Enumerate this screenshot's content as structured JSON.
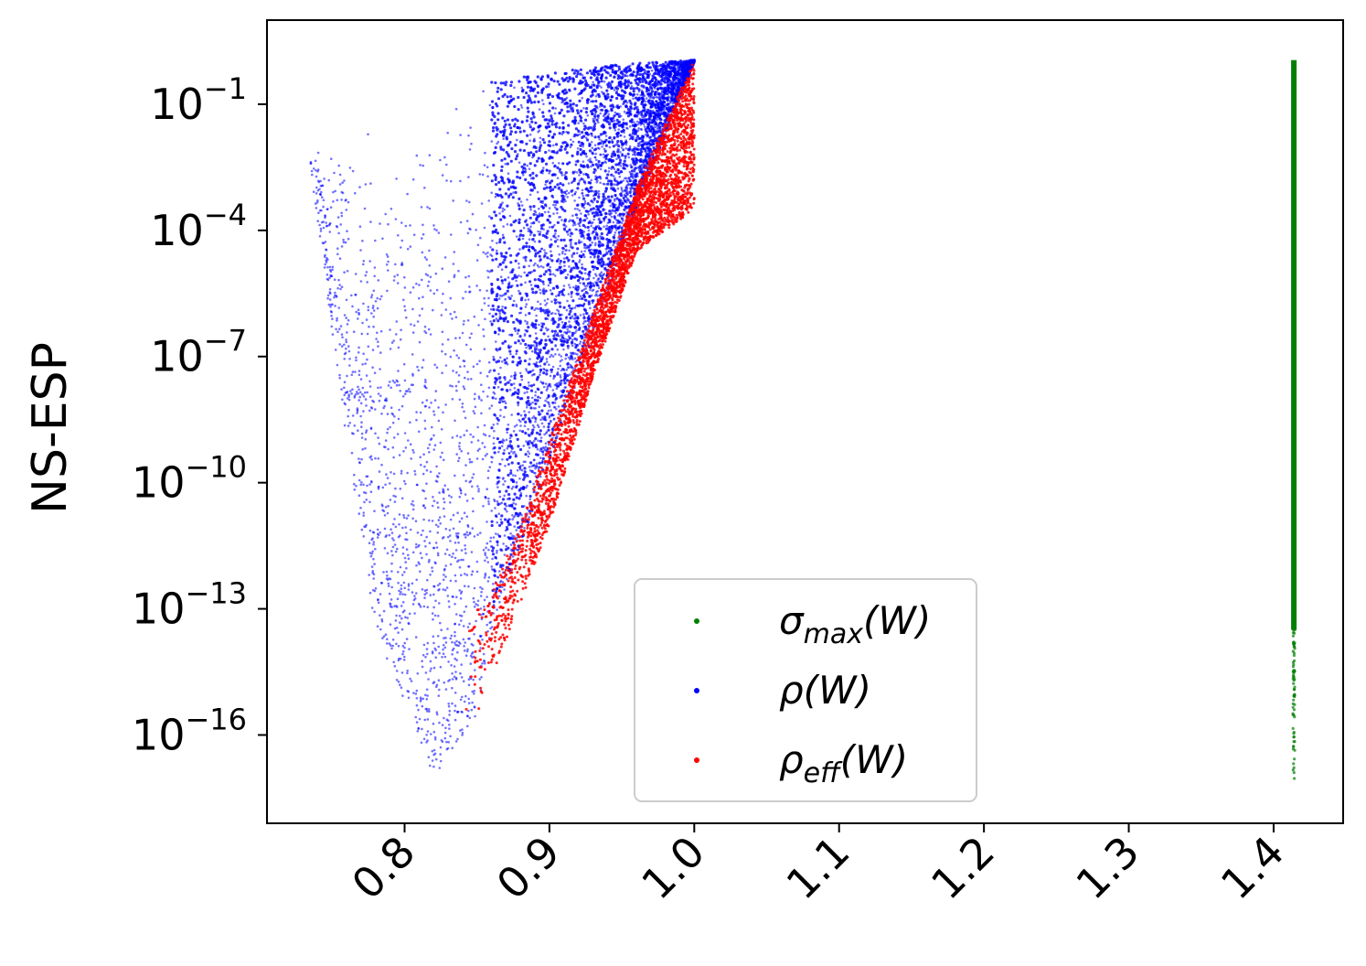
{
  "chart_data": {
    "type": "scatter",
    "title": "",
    "xlabel": "",
    "ylabel": "NS-ESP",
    "xscale": "linear",
    "yscale": "log",
    "xlim": [
      0.705,
      1.448
    ],
    "ylim_exp": [
      -18.1,
      1.0
    ],
    "x_ticks": [
      {
        "value": 0.8,
        "label": "0.8"
      },
      {
        "value": 0.9,
        "label": "0.9"
      },
      {
        "value": 1.0,
        "label": "1.0"
      },
      {
        "value": 1.1,
        "label": "1.1"
      },
      {
        "value": 1.2,
        "label": "1.2"
      },
      {
        "value": 1.3,
        "label": "1.3"
      },
      {
        "value": 1.4,
        "label": "1.4"
      }
    ],
    "y_ticks": [
      {
        "exp": -1,
        "base": "10",
        "power": "−1"
      },
      {
        "exp": -4,
        "base": "10",
        "power": "−4"
      },
      {
        "exp": -7,
        "base": "10",
        "power": "−7"
      },
      {
        "exp": -10,
        "base": "10",
        "power": "−10"
      },
      {
        "exp": -13,
        "base": "10",
        "power": "−13"
      },
      {
        "exp": -16,
        "base": "10",
        "power": "−16"
      }
    ],
    "grid": false,
    "legend_position": "bottom-center",
    "series": [
      {
        "name": "σ_max(W)",
        "legend_main": "σ",
        "legend_sub": "max",
        "legend_tail": "(W)",
        "color": "#008000",
        "x_value": 1.414,
        "y_exp_range": [
          -17.2,
          0.05
        ],
        "dense_y_exp_range": [
          -13.5,
          0.05
        ]
      },
      {
        "name": "ρ(W)",
        "legend_main": "ρ",
        "legend_sub": "",
        "legend_tail": "(W)",
        "color": "#0000ff",
        "x_range": [
          0.735,
          1.0
        ],
        "lower_envelope": [
          [
            0.735,
            -2.5
          ],
          [
            0.76,
            -9.0
          ],
          [
            0.78,
            -13.5
          ],
          [
            0.82,
            -17.0
          ],
          [
            0.85,
            -15.5
          ],
          [
            0.86,
            -13.5
          ],
          [
            0.88,
            -11.5
          ],
          [
            0.9,
            -9.5
          ],
          [
            0.93,
            -6.5
          ],
          [
            0.96,
            -3.5
          ],
          [
            1.0,
            0.0
          ]
        ],
        "upper_envelope": [
          [
            0.735,
            -2.0
          ],
          [
            0.78,
            -1.5
          ],
          [
            0.85,
            -0.5
          ],
          [
            0.9,
            -0.25
          ],
          [
            0.95,
            -0.05
          ],
          [
            1.0,
            0.05
          ]
        ]
      },
      {
        "name": "ρ_eff(W)",
        "legend_main": "ρ",
        "legend_sub": "eff",
        "legend_tail": "(W)",
        "color": "#ff0000",
        "x_range": [
          0.84,
          1.0
        ],
        "lower_envelope": [
          [
            0.84,
            -17.2
          ],
          [
            0.855,
            -15.0
          ],
          [
            0.87,
            -13.8
          ],
          [
            0.9,
            -11.0
          ],
          [
            0.93,
            -7.5
          ],
          [
            0.96,
            -4.5
          ],
          [
            1.0,
            -3.5
          ]
        ],
        "upper_envelope": [
          [
            0.855,
            -13.0
          ],
          [
            0.88,
            -11.0
          ],
          [
            0.9,
            -9.0
          ],
          [
            0.93,
            -6.0
          ],
          [
            0.96,
            -3.0
          ],
          [
            1.0,
            0.05
          ]
        ]
      }
    ]
  }
}
